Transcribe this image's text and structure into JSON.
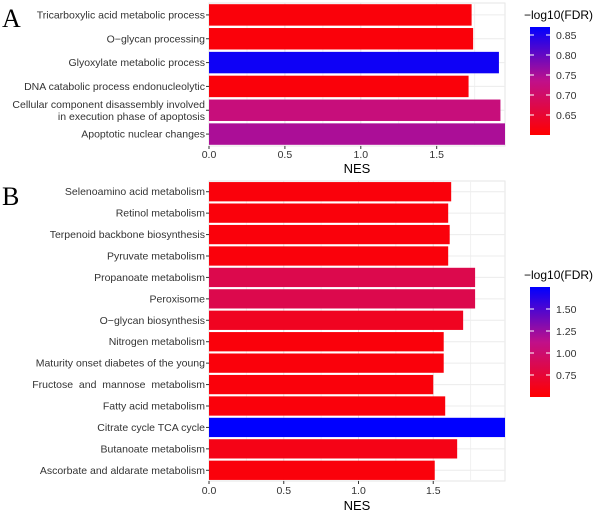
{
  "chart_data": [
    {
      "panel": "A",
      "type": "bar",
      "orientation": "horizontal",
      "xlabel": "NES",
      "xlim": [
        0,
        1.95
      ],
      "xticks": [
        "0.0",
        "0.5",
        "1.0",
        "1.5"
      ],
      "grid": true,
      "legend": {
        "title": "−log10(FDR)",
        "position": "right",
        "range": [
          0.6,
          0.87
        ],
        "ticks": [
          "0.65",
          "0.70",
          "0.75",
          "0.80",
          "0.85"
        ]
      },
      "colors": {
        "low": "#ff0000",
        "high": "#0000ff"
      },
      "categories": [
        "Tricarboxylic acid metabolic process",
        "O−glycan processing",
        "Glyoxylate metabolic process",
        "DNA catabolic process endonucleolytic",
        "Cellular component disassembly involved\nin execution phase of apoptosis",
        "Apoptotic nuclear changes"
      ],
      "values": [
        1.73,
        1.74,
        1.91,
        1.71,
        1.92,
        1.95
      ],
      "fdr": [
        0.61,
        0.61,
        0.86,
        0.61,
        0.72,
        0.75
      ]
    },
    {
      "panel": "B",
      "type": "bar",
      "orientation": "horizontal",
      "xlabel": "NES",
      "xlim": [
        0,
        1.98
      ],
      "xticks": [
        "0.0",
        "0.5",
        "1.0",
        "1.5"
      ],
      "grid": true,
      "legend": {
        "title": "−log10(FDR)",
        "position": "right",
        "range": [
          0.5,
          1.75
        ],
        "ticks": [
          "0.75",
          "1.00",
          "1.25",
          "1.50"
        ]
      },
      "colors": {
        "low": "#ff0000",
        "high": "#0000ff"
      },
      "categories": [
        "Selenoamino acid metabolism",
        "Retinol metabolism",
        "Terpenoid backbone biosynthesis",
        "Pyruvate metabolism",
        "Propanoate metabolism",
        "Peroxisome",
        "O−glycan biosynthesis",
        "Nitrogen metabolism",
        "Maturity onset diabetes of the young",
        "Fructose  and  mannose  metabolism",
        "Fatty acid metabolism",
        "Citrate cycle TCA cycle",
        "Butanoate metabolism",
        "Ascorbate and aldarate metabolism"
      ],
      "values": [
        1.62,
        1.6,
        1.61,
        1.6,
        1.78,
        1.78,
        1.7,
        1.57,
        1.57,
        1.5,
        1.58,
        1.98,
        1.66,
        1.51
      ],
      "fdr": [
        0.55,
        0.55,
        0.55,
        0.55,
        0.85,
        0.85,
        0.65,
        0.55,
        0.55,
        0.55,
        0.55,
        1.75,
        0.6,
        0.55
      ]
    }
  ]
}
